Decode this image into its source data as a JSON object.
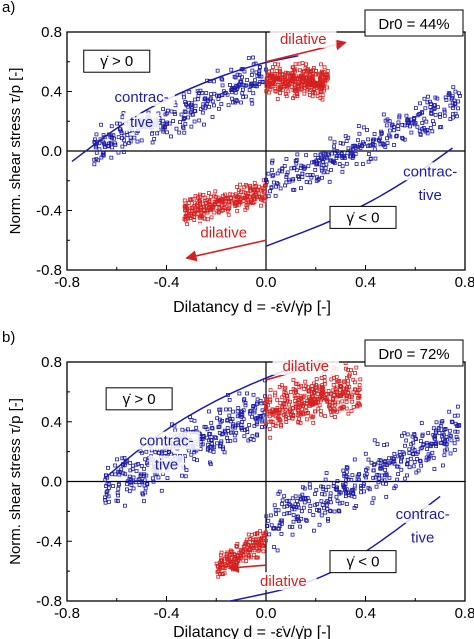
{
  "chart_data": [
    {
      "type": "scatter",
      "panel_label": "a)",
      "title": "",
      "xlabel": "Dilatancy d = -ε̇v/γ̇p [-]",
      "ylabel": "Norm. shear stress τ/p [-]",
      "xlim": [
        -0.8,
        0.8
      ],
      "ylim": [
        -0.8,
        0.8
      ],
      "xticks": [
        "-0.8",
        "-0.4",
        "0.0",
        "0.4",
        "0.8"
      ],
      "yticks": [
        "-0.8",
        "-0.4",
        "0.0",
        "0.4",
        "0.8"
      ],
      "legend_box": "Dr0 = 44%",
      "annotations": [
        {
          "text": "dilative",
          "x": 0.15,
          "y": 0.72,
          "color": "#d62020"
        },
        {
          "text": "dilative",
          "x": -0.17,
          "y": -0.58,
          "color": "#d62020"
        },
        {
          "text": "contrac-",
          "x": -0.5,
          "y": 0.33,
          "color": "#1c1ca8"
        },
        {
          "text": "tive",
          "x": -0.5,
          "y": 0.16,
          "color": "#1c1ca8"
        },
        {
          "text": "contrac-",
          "x": 0.66,
          "y": -0.17,
          "color": "#1c1ca8"
        },
        {
          "text": "tive",
          "x": 0.66,
          "y": -0.33,
          "color": "#1c1ca8"
        },
        {
          "text": "γ̇ > 0",
          "x": -0.6,
          "y": 0.57,
          "color": "#000000",
          "boxed": true
        },
        {
          "text": "γ̇ < 0",
          "x": 0.39,
          "y": -0.48,
          "color": "#000000",
          "boxed": true
        }
      ],
      "series": [
        {
          "label": "contractive-positive",
          "color": "#1c1ca8",
          "marker": "square-open",
          "x_range": [
            -0.7,
            0.0
          ],
          "slope": 0.75,
          "intercept": 0.52,
          "spread": 0.06,
          "count": 300
        },
        {
          "label": "dilative-positive",
          "color": "#d62020",
          "marker": "square-open",
          "x_range": [
            0.0,
            0.25
          ],
          "slope": 0.0,
          "intercept": 0.47,
          "spread": 0.05,
          "count": 320
        },
        {
          "label": "dilative-negative",
          "color": "#d62020",
          "marker": "square-open",
          "x_range": [
            -0.33,
            0.0
          ],
          "slope": 0.4,
          "intercept": -0.28,
          "spread": 0.04,
          "count": 260
        },
        {
          "label": "contractive-negative",
          "color": "#1c1ca8",
          "marker": "square-open",
          "x_range": [
            0.0,
            0.78
          ],
          "slope": 0.72,
          "intercept": -0.24,
          "spread": 0.06,
          "count": 320
        }
      ],
      "envelopes": [
        {
          "color": "#1c1ca8",
          "points": [
            [
              -0.78,
              -0.07
            ],
            [
              -0.55,
              0.22
            ],
            [
              -0.3,
              0.43
            ],
            [
              -0.05,
              0.58
            ],
            [
              0.13,
              0.64
            ]
          ]
        },
        {
          "color": "#1c1ca8",
          "points": [
            [
              0.0,
              -0.64
            ],
            [
              0.3,
              -0.45
            ],
            [
              0.55,
              -0.22
            ],
            [
              0.75,
              0.02
            ]
          ]
        }
      ],
      "arrows": [
        {
          "color": "#d62020",
          "from": [
            0.0,
            0.6
          ],
          "to": [
            0.32,
            0.73
          ]
        },
        {
          "color": "#d62020",
          "from": [
            0.0,
            -0.6
          ],
          "to": [
            -0.32,
            -0.72
          ]
        }
      ]
    },
    {
      "type": "scatter",
      "panel_label": "b)",
      "title": "",
      "xlabel": "Dilatancy d = -ε̇v/γ̇p [-]",
      "ylabel": "Norm. shear stress τ/p [-]",
      "xlim": [
        -0.8,
        0.8
      ],
      "ylim": [
        -0.8,
        0.8
      ],
      "xticks": [
        "-0.8",
        "-0.4",
        "0.0",
        "0.4",
        "0.8"
      ],
      "yticks": [
        "-0.8",
        "-0.4",
        "0.0",
        "0.4",
        "0.8"
      ],
      "legend_box": "Dr0 = 72%",
      "annotations": [
        {
          "text": "dilative",
          "x": 0.16,
          "y": 0.74,
          "color": "#d62020"
        },
        {
          "text": "dilative",
          "x": 0.07,
          "y": -0.7,
          "color": "#d62020"
        },
        {
          "text": "contrac-",
          "x": -0.4,
          "y": 0.24,
          "color": "#1c1ca8"
        },
        {
          "text": "tive",
          "x": -0.4,
          "y": 0.08,
          "color": "#1c1ca8"
        },
        {
          "text": "contrac-",
          "x": 0.63,
          "y": -0.25,
          "color": "#1c1ca8"
        },
        {
          "text": "tive",
          "x": 0.63,
          "y": -0.41,
          "color": "#1c1ca8"
        },
        {
          "text": "γ̇ > 0",
          "x": -0.51,
          "y": 0.52,
          "color": "#000000",
          "boxed": true
        },
        {
          "text": "γ̇ < 0",
          "x": 0.39,
          "y": -0.57,
          "color": "#000000",
          "boxed": true
        }
      ],
      "series": [
        {
          "label": "contractive-positive",
          "color": "#1c1ca8",
          "marker": "square-open",
          "x_range": [
            -0.65,
            0.0
          ],
          "slope": 0.85,
          "intercept": 0.5,
          "spread": 0.08,
          "count": 380
        },
        {
          "label": "dilative-positive",
          "color": "#d62020",
          "marker": "square-open",
          "x_range": [
            0.0,
            0.38
          ],
          "slope": 0.45,
          "intercept": 0.46,
          "spread": 0.07,
          "count": 360
        },
        {
          "label": "dilative-negative",
          "color": "#d62020",
          "marker": "square-open",
          "x_range": [
            -0.2,
            0.0
          ],
          "slope": 1.0,
          "intercept": -0.38,
          "spread": 0.04,
          "count": 170
        },
        {
          "label": "contractive-negative",
          "color": "#1c1ca8",
          "marker": "square-open",
          "x_range": [
            0.0,
            0.78
          ],
          "slope": 0.82,
          "intercept": -0.3,
          "spread": 0.08,
          "count": 380
        }
      ],
      "envelopes": [
        {
          "color": "#1c1ca8",
          "points": [
            [
              -0.65,
              0.02
            ],
            [
              -0.45,
              0.3
            ],
            [
              -0.2,
              0.55
            ],
            [
              0.05,
              0.73
            ],
            [
              0.15,
              0.78
            ]
          ]
        },
        {
          "color": "#1c1ca8",
          "points": [
            [
              -0.2,
              -0.82
            ],
            [
              0.2,
              -0.68
            ],
            [
              0.45,
              -0.42
            ],
            [
              0.7,
              -0.1
            ]
          ]
        }
      ],
      "arrows": [
        {
          "color": "#d62020",
          "from": [
            0.0,
            0.68
          ],
          "to": [
            0.25,
            0.8
          ]
        },
        {
          "color": "#d62020",
          "from": [
            0.0,
            -0.56
          ],
          "to": [
            -0.15,
            -0.58
          ]
        }
      ]
    }
  ]
}
